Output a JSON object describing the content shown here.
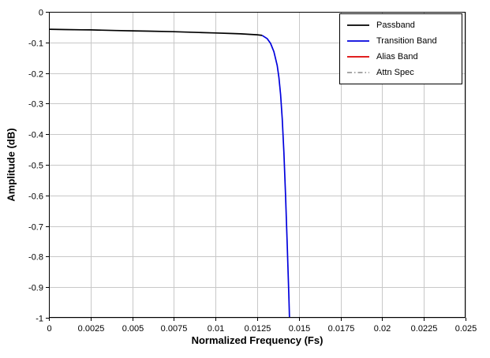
{
  "colors": {
    "background": "#ffffff",
    "grid": "#c8c8c8",
    "axis": "#000000"
  },
  "chart_data": {
    "type": "line",
    "title": "",
    "xlabel": "Normalized Frequency (Fs)",
    "ylabel": "Amplitude (dB)",
    "xlim": [
      0,
      0.025
    ],
    "ylim": [
      -1,
      0
    ],
    "grid": true,
    "legend_position": "top-right",
    "x_ticks": {
      "values": [
        0,
        0.0025,
        0.005,
        0.0075,
        0.01,
        0.0125,
        0.015,
        0.0175,
        0.02,
        0.0225,
        0.025
      ],
      "labels": [
        "0",
        "0.0025",
        "0.005",
        "0.0075",
        "0.01",
        "0.0125",
        "0.015",
        "0.0175",
        "0.02",
        "0.0225",
        "0.025"
      ]
    },
    "y_ticks": {
      "values": [
        0,
        -0.1,
        -0.2,
        -0.3,
        -0.4,
        -0.5,
        -0.6,
        -0.7,
        -0.8,
        -0.9,
        -1
      ],
      "labels": [
        "0",
        "-0.1",
        "-0.2",
        "-0.3",
        "-0.4",
        "-0.5",
        "-0.6",
        "-0.7",
        "-0.8",
        "-0.9",
        "-1"
      ]
    },
    "series": [
      {
        "name": "Passband",
        "color": "#000000",
        "style": "solid",
        "points": [
          [
            0,
            -0.057
          ],
          [
            0.001,
            -0.058
          ],
          [
            0.002,
            -0.0588
          ],
          [
            0.0025,
            -0.059
          ],
          [
            0.004,
            -0.061
          ],
          [
            0.005,
            -0.062
          ],
          [
            0.006,
            -0.0632
          ],
          [
            0.0075,
            -0.065
          ],
          [
            0.009,
            -0.0675
          ],
          [
            0.01,
            -0.069
          ],
          [
            0.011,
            -0.0708
          ],
          [
            0.0115,
            -0.072
          ],
          [
            0.012,
            -0.0735
          ],
          [
            0.0125,
            -0.075
          ],
          [
            0.0128,
            -0.077
          ]
        ]
      },
      {
        "name": "Transition Band",
        "color": "#0000dd",
        "style": "solid",
        "points": [
          [
            0.0128,
            -0.077
          ],
          [
            0.0131,
            -0.088
          ],
          [
            0.0133,
            -0.103
          ],
          [
            0.0135,
            -0.13
          ],
          [
            0.0137,
            -0.175
          ],
          [
            0.0138,
            -0.215
          ],
          [
            0.0139,
            -0.27
          ],
          [
            0.014,
            -0.35
          ],
          [
            0.0141,
            -0.46
          ],
          [
            0.0142,
            -0.6
          ],
          [
            0.0143,
            -0.76
          ],
          [
            0.0144,
            -0.93
          ],
          [
            0.01445,
            -1.03
          ]
        ]
      },
      {
        "name": "Alias Band",
        "color": "#dd0000",
        "style": "solid",
        "points": []
      },
      {
        "name": "Attn Spec",
        "color": "#9a9a9a",
        "style": "dashdot",
        "points": []
      }
    ]
  }
}
